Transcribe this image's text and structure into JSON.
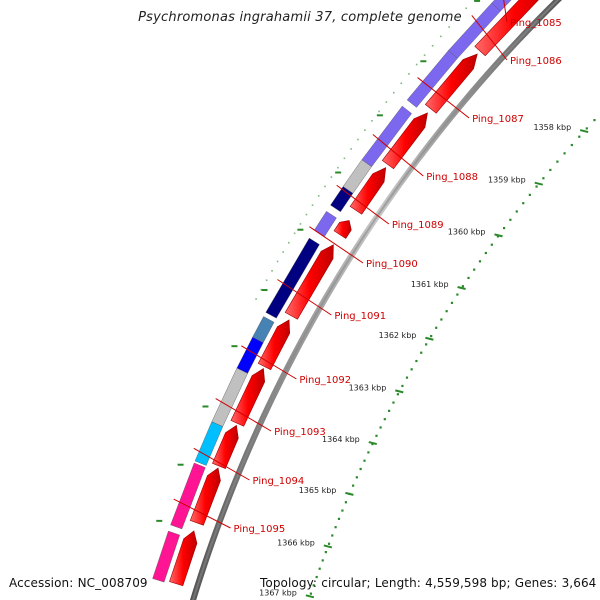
{
  "title": "Psychromonas ingrahamii 37, complete genome",
  "footer": {
    "accession_label": "Accession:",
    "accession_value": "NC_008709",
    "topology_label": "Topology:",
    "topology_value": "circular;",
    "length_label": "Length:",
    "length_value": "4,559,598 bp;",
    "genes_label": "Genes:",
    "genes_value": "3,664"
  },
  "ruler": {
    "ticks": [
      "1358 kbp",
      "1359 kbp",
      "1360 kbp",
      "1361 kbp",
      "1362 kbp",
      "1363 kbp",
      "1364 kbp",
      "1365 kbp",
      "1366 kbp",
      "1367 kbp"
    ],
    "color": "#2a8a2a"
  },
  "genes": [
    "Ping_1085",
    "Ping_1086",
    "Ping_1087",
    "Ping_1088",
    "Ping_1089",
    "Ping_1090",
    "Ping_1091",
    "Ping_1092",
    "Ping_1093",
    "Ping_1094",
    "Ping_1095"
  ],
  "colors": {
    "backbone": "#888888",
    "cds": "#ff0000",
    "label": "#d00000",
    "medium_purple": "#7b68ee",
    "navy": "#000080",
    "steel_blue": "#4682b4",
    "blue": "#0000ff",
    "silver": "#c0c0c0",
    "deep_sky_blue": "#00bfff",
    "deep_pink": "#ff1493",
    "pink": "#ffc0cb"
  }
}
